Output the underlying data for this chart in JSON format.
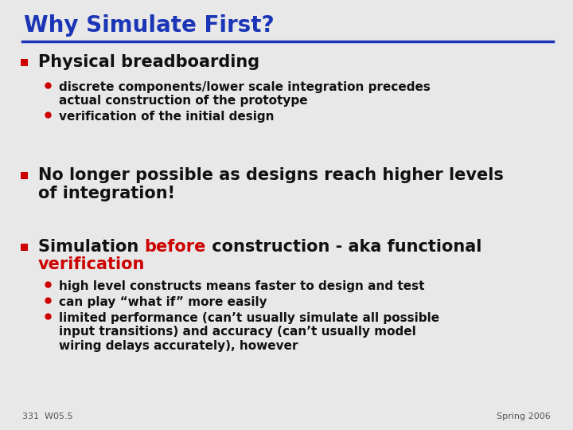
{
  "title": "Why Simulate First?",
  "title_color": "#1a35b5",
  "title_underline_color": "#1a35b5",
  "background_color": "#e8e8e8",
  "bullet_color": "#cc0000",
  "square_bullet_edge": "#cc0000",
  "square_bullet_face": "#cc0000",
  "black_text": "#111111",
  "red_text": "#cc0000",
  "footer_left": "331  W05.5",
  "footer_right": "Spring 2006",
  "title_fs": 20,
  "main_fs": 15,
  "sub_fs": 11,
  "footer_fs": 8
}
